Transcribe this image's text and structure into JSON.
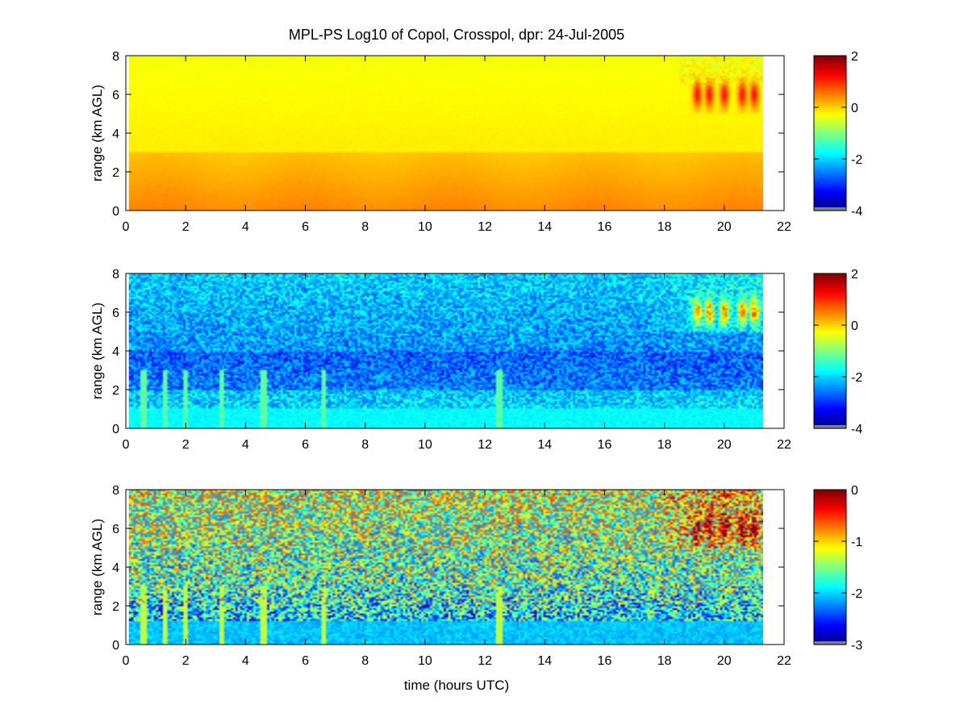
{
  "figure": {
    "title": "MPL-PS Log10 of Copol, Crosspol, dpr: 24-Jul-2005",
    "xlabel": "time (hours UTC)"
  },
  "chart_data": [
    {
      "type": "heatmap",
      "title": "MPL-PS Log10 of Copol, Crosspol, dpr: 24-Jul-2005",
      "xlabel": "",
      "ylabel": "range (km AGL)",
      "xlim": [
        0,
        22
      ],
      "ylim": [
        0,
        8
      ],
      "data_x_extent": [
        0.1,
        21.3
      ],
      "x_ticks": [
        0,
        2,
        4,
        6,
        8,
        10,
        12,
        14,
        16,
        18,
        20,
        22
      ],
      "y_ticks": [
        0,
        2,
        4,
        6,
        8
      ],
      "colorbar": {
        "range": [
          -4,
          2
        ],
        "ticks": [
          2,
          0,
          -2,
          -4
        ],
        "colormap": "jet"
      },
      "description_values": {
        "near_surface": 0.4,
        "aloft": -0.3,
        "cloud_layer": 1.1
      }
    },
    {
      "type": "heatmap",
      "xlabel": "",
      "ylabel": "range (km AGL)",
      "xlim": [
        0,
        22
      ],
      "ylim": [
        0,
        8
      ],
      "data_x_extent": [
        0.1,
        21.3
      ],
      "x_ticks": [
        0,
        2,
        4,
        6,
        8,
        10,
        12,
        14,
        16,
        18,
        20,
        22
      ],
      "y_ticks": [
        0,
        2,
        4,
        6,
        8
      ],
      "colorbar": {
        "range": [
          -4,
          2
        ],
        "ticks": [
          2,
          0,
          -2,
          -4
        ],
        "colormap": "jet"
      },
      "description_values": {
        "near_surface": -1.9,
        "mid_level": -2.7,
        "cloud_layer": 0.1
      }
    },
    {
      "type": "heatmap",
      "xlabel": "time (hours UTC)",
      "ylabel": "range (km AGL)",
      "xlim": [
        0,
        22
      ],
      "ylim": [
        0,
        8
      ],
      "data_x_extent": [
        0.1,
        21.3
      ],
      "x_ticks": [
        0,
        2,
        4,
        6,
        8,
        10,
        12,
        14,
        16,
        18,
        20,
        22
      ],
      "y_ticks": [
        0,
        2,
        4,
        6,
        8
      ],
      "colorbar": {
        "range": [
          -3,
          0
        ],
        "ticks": [
          0,
          -1,
          -2,
          -3
        ],
        "colormap": "jet"
      },
      "description_values": {
        "near_surface": -2.1,
        "aloft": -1.3,
        "cloud_layer": -0.4
      }
    }
  ],
  "colors": {
    "axis": "#000000",
    "background": "#ffffff",
    "missing": "#808080"
  }
}
